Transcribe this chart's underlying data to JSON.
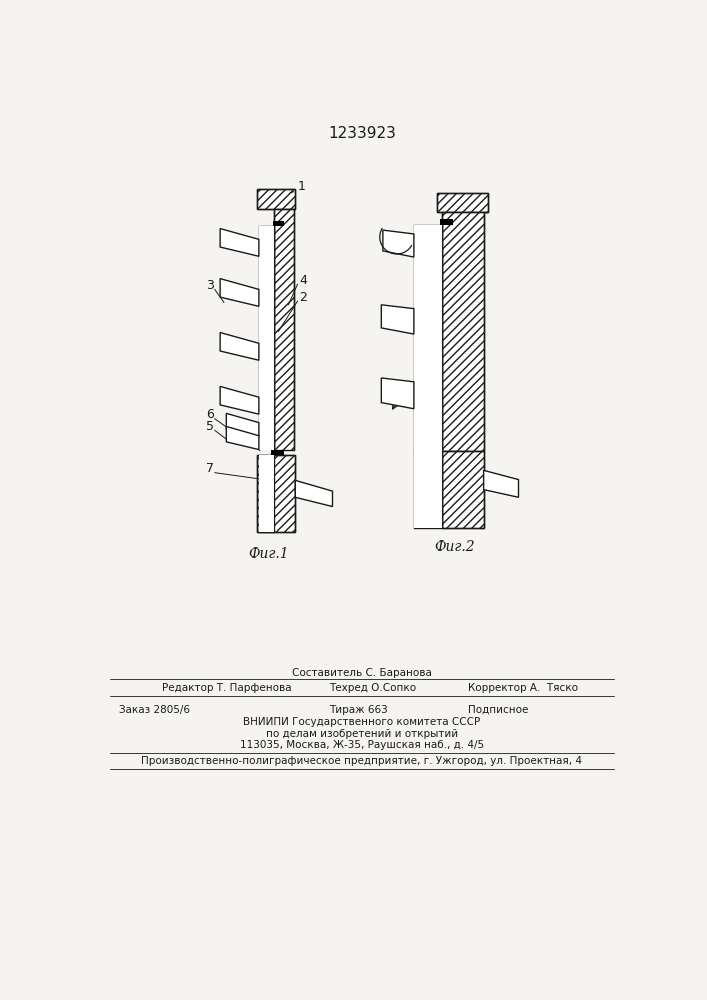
{
  "patent_number": "1233923",
  "fig1_label": "Фиг.1",
  "fig2_label": "Фиг.2",
  "bg_color": "#f5f4f0",
  "line_color": "#1a1a1a",
  "footer_line1_left": "Редактор Т. Парфенова",
  "footer_line1_center": "Составитель С. Баранова",
  "footer_line1_right": "Корректор А.  Тяско",
  "footer_line2_center": "Техред О.Сопко",
  "footer_zakaz": "Заказ 2805/6",
  "footer_tirazh": "Тираж 663",
  "footer_podpisnoe": "Подписное",
  "footer_vniiipi": "ВНИИПИ Государственного комитета СССР",
  "footer_po_delam": "по делам изобретений и открытий",
  "footer_address": "113035, Москва, Ж-35, Раушская наб., д. 4/5",
  "footer_production": "Производственно-полиграфическое предприятие, г. Ужгород, ул. Проектная, 4"
}
